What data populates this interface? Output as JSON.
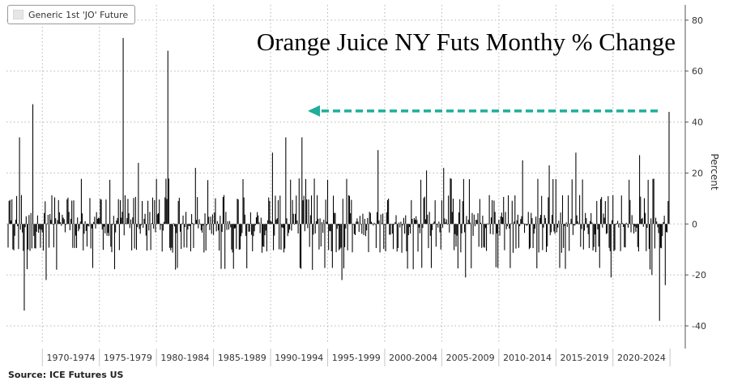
{
  "header": {
    "legend_label": "Generic 1st 'JO' Future",
    "title": "Orange Juice NY Futs Monthy % Change",
    "source": "Source: ICE Futures US"
  },
  "colors": {
    "bar": "#000000",
    "arrow": "#1fae9b",
    "grid": "#b5b5b5",
    "axis": "#555555"
  },
  "chart_data": {
    "type": "bar",
    "title": "Orange Juice NY Futs Monthy % Change",
    "xlabel": "",
    "ylabel": "Percent",
    "ylim": [
      -47,
      86
    ],
    "yticks": [
      -40,
      -20,
      0,
      20,
      40,
      60,
      80
    ],
    "grid": true,
    "legend": {
      "position": "top-left",
      "entries": [
        "Generic 1st 'JO' Future"
      ]
    },
    "x_range": [
      "1967-01",
      "2024-12"
    ],
    "x_period_labels": [
      "1970-1974",
      "1975-1979",
      "1980-1984",
      "1985-1989",
      "1990-1994",
      "1995-1999",
      "2000-2004",
      "2005-2009",
      "2010-2014",
      "2015-2019",
      "2020-2024"
    ],
    "series": [
      {
        "name": "Generic 1st 'JO' Future",
        "notable_values": [
          {
            "date": "1968-01",
            "value": 34
          },
          {
            "date": "1968-06",
            "value": -34
          },
          {
            "date": "1969-03",
            "value": 47
          },
          {
            "date": "1970-05",
            "value": -22
          },
          {
            "date": "1977-02",
            "value": 73
          },
          {
            "date": "1978-06",
            "value": 24
          },
          {
            "date": "1981-01",
            "value": 68
          },
          {
            "date": "1983-06",
            "value": 22
          },
          {
            "date": "1990-03",
            "value": 28
          },
          {
            "date": "1991-05",
            "value": 34
          },
          {
            "date": "1992-10",
            "value": 34
          },
          {
            "date": "1993-09",
            "value": -18
          },
          {
            "date": "1996-04",
            "value": -22
          },
          {
            "date": "1999-06",
            "value": 29
          },
          {
            "date": "2003-09",
            "value": 21
          },
          {
            "date": "2005-03",
            "value": 22
          },
          {
            "date": "2007-02",
            "value": -21
          },
          {
            "date": "2009-10",
            "value": -17
          },
          {
            "date": "2012-02",
            "value": 25
          },
          {
            "date": "2014-06",
            "value": 23
          },
          {
            "date": "2016-10",
            "value": 28
          },
          {
            "date": "2019-11",
            "value": -21
          },
          {
            "date": "2022-05",
            "value": 27
          },
          {
            "date": "2023-06",
            "value": -20
          },
          {
            "date": "2024-02",
            "value": -38
          },
          {
            "date": "2024-08",
            "value": -24
          },
          {
            "date": "2024-12",
            "value": 44
          }
        ]
      }
    ],
    "annotation": {
      "type": "arrow",
      "direction": "left",
      "style": "dashed",
      "y_value": 45
    }
  }
}
